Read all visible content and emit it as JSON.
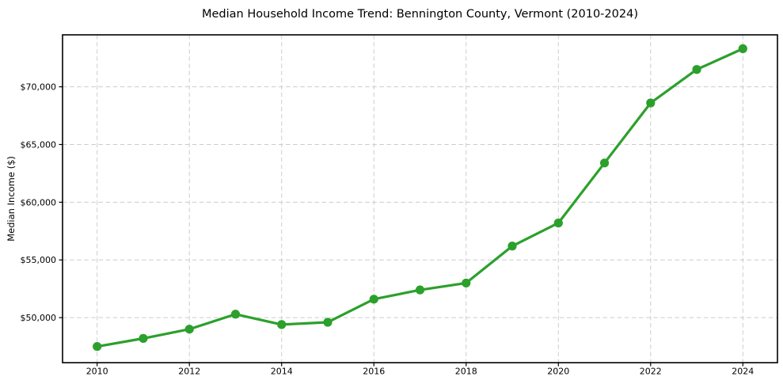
{
  "chart_data": {
    "type": "line",
    "title": "Median Household Income Trend: Bennington County, Vermont (2010-2024)",
    "xlabel": "",
    "ylabel": "Median Income ($)",
    "series": [
      {
        "name": "Median household income",
        "x": [
          2010,
          2011,
          2012,
          2013,
          2014,
          2015,
          2016,
          2017,
          2018,
          2019,
          2020,
          2021,
          2022,
          2023,
          2024
        ],
        "values": [
          47500,
          48200,
          49000,
          50300,
          49400,
          49600,
          51600,
          52400,
          53000,
          56200,
          58200,
          63400,
          68600,
          71500,
          73300
        ],
        "marker": "circle"
      }
    ],
    "xlim": [
      2009.25,
      2024.75
    ],
    "ylim": [
      46100,
      74500
    ],
    "xticks": {
      "values": [
        2010,
        2012,
        2014,
        2016,
        2018,
        2020,
        2022,
        2024
      ],
      "labels": [
        "2010",
        "2012",
        "2014",
        "2016",
        "2018",
        "2020",
        "2022",
        "2024"
      ]
    },
    "yticks": {
      "values": [
        50000,
        55000,
        60000,
        65000,
        70000
      ],
      "labels": [
        "$50,000",
        "$55,000",
        "$60,000",
        "$65,000",
        "$70,000"
      ]
    },
    "grid": true,
    "grid_style": "dashed",
    "legend": "none",
    "colors": {
      "line": "#2ca02c",
      "marker": "#2ca02c",
      "grid": "#cccccc",
      "spine": "#000000",
      "tick": "#000000",
      "text": "#000000",
      "background": "#ffffff"
    }
  }
}
